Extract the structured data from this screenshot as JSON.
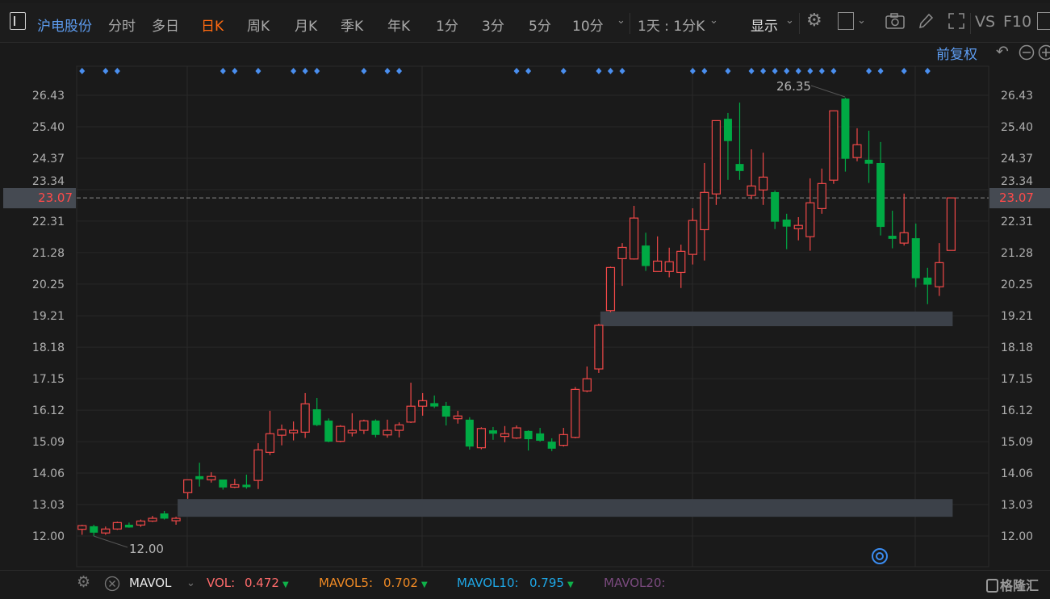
{
  "toolbar": {
    "stock_name": "沪电股份",
    "tabs": [
      "分时",
      "多日",
      "日K",
      "周K",
      "月K",
      "季K",
      "年K",
      "1分",
      "3分",
      "5分",
      "10分"
    ],
    "active_tab": "日K",
    "range_select": "1天 : 1分K",
    "display_label": "显示",
    "vs_label": "VS",
    "f10_label": "F10",
    "icons": [
      "sidebar-toggle-icon",
      "chevron-down-icon",
      "gear-icon",
      "square-layout-icon",
      "camera-icon",
      "pencil-icon",
      "expand-icon"
    ]
  },
  "subbar": {
    "adjust_label": "前复权",
    "icons": [
      "undo-icon",
      "zoom-out-icon",
      "zoom-in-icon"
    ]
  },
  "price_labels": {
    "current": "23.07",
    "high": "26.35",
    "low": "12.00"
  },
  "indicator_bar": {
    "indicator": "MAVOL",
    "vol_label": "VOL:",
    "vol_value": "0.472",
    "mavol5_label": "MAVOL5:",
    "mavol5_value": "0.702",
    "mavol10_label": "MAVOL10:",
    "mavol10_value": "0.795",
    "mavol20_label": "MAVOL20:",
    "brand": "格隆汇"
  },
  "colors": {
    "up": "#f04848",
    "down": "#00aa44",
    "accent": "#ff6a10",
    "link": "#5d9cf0",
    "vol": "#ff6b6b",
    "mavol5": "#f08a24",
    "mavol10": "#1ea7e6",
    "mavol20": "#7a4a7e"
  },
  "chart_data": {
    "type": "candlestick",
    "ylim": [
      12.0,
      26.43
    ],
    "y_ticks": [
      "26.43",
      "25.40",
      "24.37",
      "23.34",
      "22.31",
      "21.28",
      "20.25",
      "19.21",
      "18.18",
      "17.15",
      "16.12",
      "15.09",
      "14.06",
      "13.03",
      "12.00"
    ],
    "grid": true,
    "ohlc": [
      [
        12.22,
        12.37,
        12.04,
        12.34
      ],
      [
        12.32,
        12.37,
        12.0,
        12.11
      ],
      [
        12.1,
        12.31,
        12.04,
        12.23
      ],
      [
        12.23,
        12.47,
        12.2,
        12.44
      ],
      [
        12.37,
        12.44,
        12.27,
        12.28
      ],
      [
        12.36,
        12.54,
        12.3,
        12.49
      ],
      [
        12.49,
        12.66,
        12.46,
        12.58
      ],
      [
        12.74,
        12.82,
        12.54,
        12.57
      ],
      [
        12.5,
        12.63,
        12.37,
        12.58
      ],
      [
        13.42,
        13.85,
        13.22,
        13.84
      ],
      [
        13.96,
        14.4,
        13.62,
        13.86
      ],
      [
        13.84,
        14.09,
        13.75,
        13.95
      ],
      [
        13.85,
        13.85,
        13.52,
        13.59
      ],
      [
        13.6,
        13.87,
        13.57,
        13.68
      ],
      [
        13.68,
        14.01,
        13.55,
        13.6
      ],
      [
        13.82,
        15.04,
        13.54,
        14.82
      ],
      [
        14.74,
        16.1,
        14.65,
        15.35
      ],
      [
        15.3,
        15.65,
        14.97,
        15.48
      ],
      [
        15.38,
        15.75,
        15.13,
        15.46
      ],
      [
        15.4,
        16.68,
        15.21,
        16.33
      ],
      [
        16.15,
        16.52,
        15.6,
        15.63
      ],
      [
        15.78,
        15.85,
        15.07,
        15.09
      ],
      [
        15.1,
        15.63,
        15.07,
        15.59
      ],
      [
        15.38,
        16.02,
        15.26,
        15.46
      ],
      [
        15.46,
        15.81,
        15.34,
        15.77
      ],
      [
        15.78,
        15.82,
        15.23,
        15.31
      ],
      [
        15.31,
        15.81,
        15.22,
        15.46
      ],
      [
        15.46,
        15.72,
        15.23,
        15.64
      ],
      [
        15.73,
        17.02,
        15.7,
        16.25
      ],
      [
        16.25,
        16.68,
        15.94,
        16.43
      ],
      [
        16.35,
        16.6,
        16.19,
        16.24
      ],
      [
        16.26,
        16.39,
        15.62,
        15.91
      ],
      [
        15.84,
        16.1,
        15.68,
        15.93
      ],
      [
        15.81,
        15.89,
        14.83,
        14.93
      ],
      [
        14.89,
        15.56,
        14.84,
        15.52
      ],
      [
        15.46,
        15.57,
        15.15,
        15.35
      ],
      [
        15.26,
        15.6,
        15.07,
        15.35
      ],
      [
        15.21,
        15.62,
        15.18,
        15.54
      ],
      [
        15.44,
        15.46,
        14.8,
        15.17
      ],
      [
        15.36,
        15.54,
        15.09,
        15.12
      ],
      [
        15.09,
        15.2,
        14.78,
        14.86
      ],
      [
        14.97,
        15.54,
        14.93,
        15.32
      ],
      [
        15.23,
        16.88,
        15.2,
        16.8
      ],
      [
        16.75,
        17.55,
        16.71,
        17.15
      ],
      [
        17.47,
        18.95,
        17.34,
        18.9
      ],
      [
        19.38,
        20.82,
        19.33,
        20.79
      ],
      [
        21.08,
        21.59,
        20.19,
        21.45
      ],
      [
        21.07,
        22.81,
        21.05,
        22.41
      ],
      [
        21.51,
        21.93,
        20.68,
        20.84
      ],
      [
        20.66,
        21.81,
        20.66,
        21.0
      ],
      [
        20.66,
        21.44,
        20.47,
        20.98
      ],
      [
        20.63,
        21.54,
        20.12,
        21.32
      ],
      [
        21.22,
        22.73,
        20.89,
        22.33
      ],
      [
        22.03,
        24.21,
        21.02,
        23.25
      ],
      [
        23.2,
        25.61,
        22.84,
        25.6
      ],
      [
        25.66,
        25.85,
        23.66,
        24.93
      ],
      [
        24.18,
        26.19,
        23.66,
        23.95
      ],
      [
        23.15,
        24.66,
        23.03,
        23.46
      ],
      [
        23.33,
        24.55,
        22.84,
        23.75
      ],
      [
        23.26,
        23.31,
        22.05,
        22.29
      ],
      [
        22.36,
        22.55,
        21.39,
        22.13
      ],
      [
        22.06,
        22.44,
        21.68,
        22.17
      ],
      [
        21.8,
        23.71,
        21.34,
        22.91
      ],
      [
        22.72,
        24.03,
        22.55,
        23.54
      ],
      [
        23.65,
        25.93,
        23.53,
        25.92
      ],
      [
        26.32,
        26.35,
        23.93,
        24.35
      ],
      [
        24.39,
        25.35,
        24.27,
        24.81
      ],
      [
        24.32,
        25.27,
        23.56,
        24.19
      ],
      [
        24.21,
        24.9,
        21.84,
        22.12
      ],
      [
        21.83,
        22.65,
        21.42,
        21.73
      ],
      [
        21.59,
        23.21,
        21.51,
        21.93
      ],
      [
        21.75,
        22.23,
        20.15,
        20.44
      ],
      [
        20.46,
        20.78,
        19.59,
        20.23
      ],
      [
        20.16,
        21.59,
        19.86,
        20.95
      ],
      [
        21.35,
        23.07,
        21.35,
        23.07
      ]
    ],
    "signal_markers": [
      1,
      3,
      4,
      13,
      14,
      16,
      19,
      20,
      21,
      25,
      27,
      28,
      38,
      39,
      42,
      45,
      46,
      47,
      53,
      54,
      56,
      58,
      59,
      60,
      61,
      62,
      63,
      64,
      65,
      68,
      69,
      71,
      73
    ],
    "zones": [
      {
        "from_candle": 9,
        "to_candle": 75,
        "low": 12.63,
        "high": 13.21
      },
      {
        "from_candle": 45,
        "to_candle": 75,
        "low": 18.87,
        "high": 19.35
      }
    ],
    "current_price": 23.07,
    "max": {
      "candle": 66,
      "value": 26.35
    },
    "min": {
      "candle": 2,
      "value": 12.0
    }
  }
}
